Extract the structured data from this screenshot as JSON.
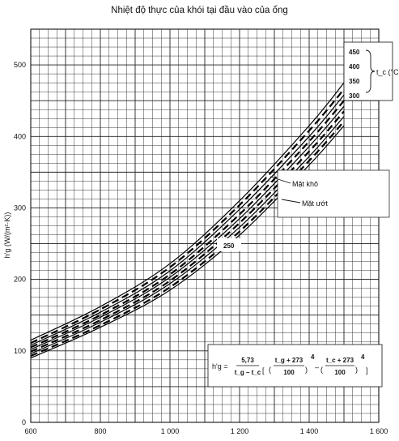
{
  "title": "Nhiệt độ thực của khói tại đầu vào của ống",
  "chart_data": {
    "type": "line",
    "xlim": [
      600,
      1600
    ],
    "ylim": [
      0,
      550
    ],
    "x_ticks": [
      {
        "value": 600,
        "label": "600"
      },
      {
        "value": 800,
        "label": "800"
      },
      {
        "value": 1000,
        "label": "1 000"
      },
      {
        "value": 1200,
        "label": "1 200"
      },
      {
        "value": 1400,
        "label": "1 400"
      },
      {
        "value": 1600,
        "label": "1 600"
      }
    ],
    "y_ticks": [
      {
        "value": 0,
        "label": "0"
      },
      {
        "value": 100,
        "label": "100"
      },
      {
        "value": 200,
        "label": "200"
      },
      {
        "value": 300,
        "label": "300"
      },
      {
        "value": 400,
        "label": "400"
      },
      {
        "value": 500,
        "label": "500"
      }
    ],
    "ylabel": "h'g (W/(m²·K))",
    "grid": true,
    "legend": {
      "group_label": "t_c (°C)",
      "entries": [
        "450",
        "400",
        "350",
        "300"
      ],
      "extra_label": "250"
    },
    "annotations": {
      "dry": "Mặt khô",
      "wet": "Mặt ướt"
    },
    "formula": {
      "lhs": "h'g =",
      "coef": "5,73",
      "den1": "t_g – t_c",
      "num_a": "t_g + 273",
      "num_b": "t_c + 273",
      "den_a": "100",
      "den_b": "100",
      "exp": "4"
    },
    "series": [
      {
        "name": "450",
        "style": "solid",
        "x": [
          600,
          800,
          1000,
          1200,
          1400,
          1500
        ],
        "y": [
          115,
          162,
          222,
          310,
          415,
          475
        ]
      },
      {
        "name": "400",
        "style": "solid",
        "x": [
          600,
          800,
          1000,
          1200,
          1400,
          1500
        ],
        "y": [
          108,
          154,
          212,
          298,
          400,
          458
        ]
      },
      {
        "name": "350",
        "style": "solid",
        "x": [
          600,
          800,
          1000,
          1200,
          1400,
          1500
        ],
        "y": [
          102,
          147,
          203,
          285,
          386,
          442
        ]
      },
      {
        "name": "300",
        "style": "solid",
        "x": [
          600,
          800,
          1000,
          1200,
          1400,
          1500
        ],
        "y": [
          96,
          140,
          194,
          273,
          372,
          428
        ]
      },
      {
        "name": "250",
        "style": "solid",
        "x": [
          600,
          800,
          1000,
          1200,
          1400,
          1500
        ],
        "y": [
          90,
          133,
          185,
          262,
          360,
          415
        ]
      },
      {
        "name": "",
        "style": "dashed",
        "x": [
          600,
          800,
          1000,
          1200,
          1400,
          1500
        ],
        "y": [
          111,
          158,
          217,
          304,
          408,
          466
        ]
      },
      {
        "name": "",
        "style": "dashed",
        "x": [
          600,
          800,
          1000,
          1200,
          1400,
          1500
        ],
        "y": [
          105,
          150,
          207,
          291,
          393,
          450
        ]
      },
      {
        "name": "",
        "style": "dashed",
        "x": [
          600,
          800,
          1000,
          1200,
          1400,
          1500
        ],
        "y": [
          99,
          143,
          198,
          279,
          379,
          435
        ]
      },
      {
        "name": "",
        "style": "dashed",
        "x": [
          600,
          800,
          1000,
          1200,
          1400,
          1500
        ],
        "y": [
          93,
          136,
          189,
          267,
          366,
          421
        ]
      }
    ]
  }
}
